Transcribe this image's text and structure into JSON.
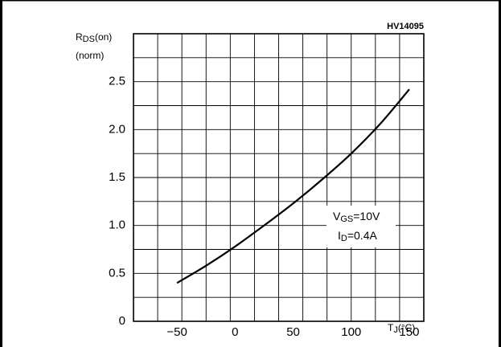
{
  "figure_code": "HV14095",
  "chart_data": {
    "type": "line",
    "ylabel_main": "R",
    "ylabel_sub": "DS",
    "ylabel_suffix": "(on)",
    "ylabel_line2": "(norm)",
    "xlabel_main": "T",
    "xlabel_sub": "J",
    "xlabel_suffix": "(°C)",
    "x_ticks": [
      "-50",
      "0",
      "50",
      "100",
      "150"
    ],
    "y_ticks": [
      "0",
      "0.5",
      "1.0",
      "1.5",
      "2.0",
      "2.5"
    ],
    "xlim": [
      -87.5,
      162.5
    ],
    "ylim": [
      0,
      3.0
    ],
    "grid": true,
    "annotations": [
      {
        "main": "V",
        "sub": "GS",
        "suffix": "=10V"
      },
      {
        "main": "I",
        "sub": "D",
        "suffix": "=0.4A"
      }
    ],
    "series": [
      {
        "x": [
          -50,
          -25,
          0,
          25,
          50,
          75,
          100,
          125,
          150
        ],
        "y": [
          0.4,
          0.58,
          0.78,
          1.0,
          1.23,
          1.48,
          1.75,
          2.06,
          2.42
        ]
      }
    ]
  }
}
